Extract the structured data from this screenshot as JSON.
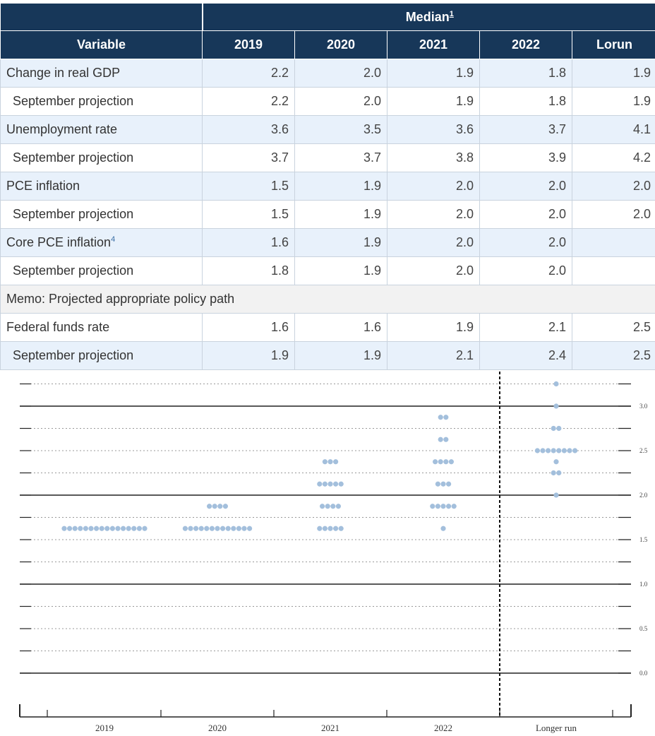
{
  "table": {
    "median_label": "Median",
    "median_sup": "1",
    "variable_header": "Variable",
    "columns": [
      "2019",
      "2020",
      "2021",
      "2022",
      "Lorun"
    ],
    "rows": [
      {
        "label": "Change in real GDP",
        "sup": "",
        "values": [
          "2.2",
          "2.0",
          "1.9",
          "1.8",
          "1.9"
        ]
      },
      {
        "label": "September projection",
        "sup": "",
        "values": [
          "2.2",
          "2.0",
          "1.9",
          "1.8",
          "1.9"
        ]
      },
      {
        "label": "Unemployment rate",
        "sup": "",
        "values": [
          "3.6",
          "3.5",
          "3.6",
          "3.7",
          "4.1"
        ]
      },
      {
        "label": "September projection",
        "sup": "",
        "values": [
          "3.7",
          "3.7",
          "3.8",
          "3.9",
          "4.2"
        ]
      },
      {
        "label": "PCE inflation",
        "sup": "",
        "values": [
          "1.5",
          "1.9",
          "2.0",
          "2.0",
          "2.0"
        ]
      },
      {
        "label": "September projection",
        "sup": "",
        "values": [
          "1.5",
          "1.9",
          "2.0",
          "2.0",
          "2.0"
        ]
      },
      {
        "label": "Core PCE inflation",
        "sup": "4",
        "values": [
          "1.6",
          "1.9",
          "2.0",
          "2.0",
          ""
        ]
      },
      {
        "label": "September projection",
        "sup": "",
        "values": [
          "1.8",
          "1.9",
          "2.0",
          "2.0",
          ""
        ]
      }
    ],
    "memo": "Memo: Projected appropriate policy path",
    "memo_rows": [
      {
        "label": "Federal funds rate",
        "values": [
          "1.6",
          "1.6",
          "1.9",
          "2.1",
          "2.5"
        ]
      },
      {
        "label": "September projection",
        "values": [
          "1.9",
          "1.9",
          "2.1",
          "2.4",
          "2.5"
        ]
      }
    ]
  },
  "chart_data": {
    "type": "scatter",
    "title": "",
    "xlabel": "",
    "ylabel": "",
    "categories": [
      "2019",
      "2020",
      "2021",
      "2022",
      "Longer run"
    ],
    "y_ticks": [
      "0.0",
      "0.5",
      "1.0",
      "1.5",
      "2.0",
      "2.5",
      "3.0"
    ],
    "ylim": [
      0.0,
      3.25
    ],
    "dot_color": "#a3bfdc",
    "dots": [
      {
        "x": "2019",
        "y": 1.625,
        "count": 16
      },
      {
        "x": "2020",
        "y": 1.875,
        "count": 4
      },
      {
        "x": "2020",
        "y": 1.625,
        "count": 13
      },
      {
        "x": "2021",
        "y": 2.375,
        "count": 3
      },
      {
        "x": "2021",
        "y": 2.125,
        "count": 5
      },
      {
        "x": "2021",
        "y": 1.875,
        "count": 4
      },
      {
        "x": "2021",
        "y": 1.625,
        "count": 5
      },
      {
        "x": "2022",
        "y": 2.875,
        "count": 2
      },
      {
        "x": "2022",
        "y": 2.625,
        "count": 2
      },
      {
        "x": "2022",
        "y": 2.375,
        "count": 4
      },
      {
        "x": "2022",
        "y": 2.125,
        "count": 3
      },
      {
        "x": "2022",
        "y": 1.875,
        "count": 5
      },
      {
        "x": "2022",
        "y": 1.625,
        "count": 1
      },
      {
        "x": "Longer run",
        "y": 3.25,
        "count": 1
      },
      {
        "x": "Longer run",
        "y": 3.0,
        "count": 1
      },
      {
        "x": "Longer run",
        "y": 2.75,
        "count": 2
      },
      {
        "x": "Longer run",
        "y": 2.5,
        "count": 8
      },
      {
        "x": "Longer run",
        "y": 2.375,
        "count": 1
      },
      {
        "x": "Longer run",
        "y": 2.25,
        "count": 2
      },
      {
        "x": "Longer run",
        "y": 2.0,
        "count": 1
      }
    ],
    "grid": true
  }
}
